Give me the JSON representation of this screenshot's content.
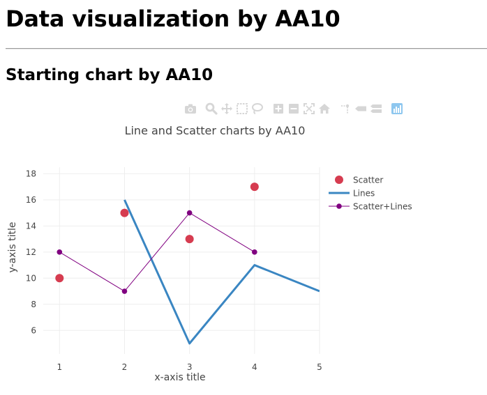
{
  "page": {
    "heading": "Data visualization by AA10",
    "subheading": "Starting chart by AA10"
  },
  "modebar": {
    "icons": [
      "camera-icon",
      "zoom-icon",
      "pan-icon",
      "box-select-icon",
      "lasso-icon",
      "zoom-in-icon",
      "zoom-out-icon",
      "autoscale-icon",
      "reset-axes-icon",
      "spike-lines-icon",
      "hover-closest-icon",
      "hover-compare-icon",
      "plotly-logo-icon"
    ],
    "icon_color": "#d6d6d6",
    "logo_color": "#8ec7ef"
  },
  "chart_data": {
    "type": "scatter",
    "title": "Line and Scatter charts by AA10",
    "xlabel": "x-axis title",
    "ylabel": "y-axis title",
    "xlim": [
      0.75,
      5
    ],
    "ylim": [
      4.2,
      18.5
    ],
    "x_ticks": [
      1,
      2,
      3,
      4,
      5
    ],
    "y_ticks": [
      6,
      8,
      10,
      12,
      14,
      16,
      18
    ],
    "grid": true,
    "legend_position": "top-right",
    "series": [
      {
        "name": "Scatter",
        "mode": "markers",
        "x": [
          1,
          2,
          3,
          4
        ],
        "y": [
          10,
          15,
          13,
          17
        ],
        "color": "#d63c50"
      },
      {
        "name": "Lines",
        "mode": "lines",
        "x": [
          2,
          3,
          4,
          5
        ],
        "y": [
          16,
          5,
          11,
          9
        ],
        "color": "#3a86c2"
      },
      {
        "name": "Scatter+Lines",
        "mode": "lines+markers",
        "x": [
          1,
          2,
          3,
          4
        ],
        "y": [
          12,
          9,
          15,
          12
        ],
        "color": "#800080"
      }
    ]
  }
}
